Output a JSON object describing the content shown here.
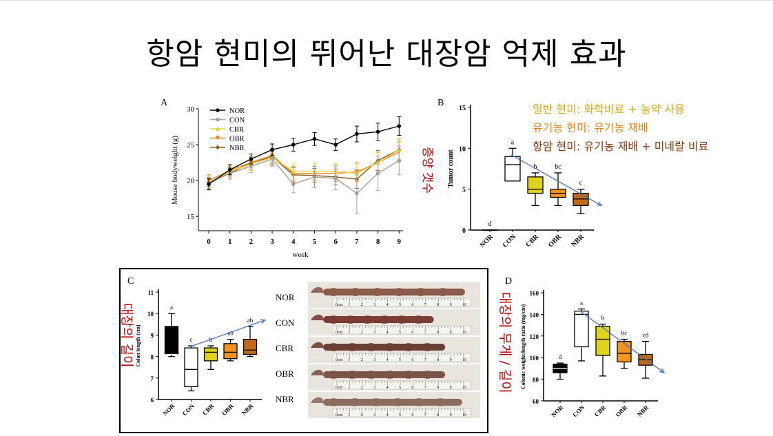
{
  "slide": {
    "title": "항암 현미의 뛰어난 대장암 억제 효과"
  },
  "annotations": {
    "tumor_side": "종양 갯수",
    "colon_length_side": "대장의 길이",
    "colon_weight_side": "대장의 무게 / 길이",
    "legend_regular": "일반 현미: 화학비료 + 농약 사용",
    "legend_organic": "유기농 현미: 유기농 재배",
    "legend_anticancer": "항암 현미: 유기농 재배 + 미네랄 비료",
    "colors": {
      "regular": "#d4a90f",
      "organic": "#e8821a",
      "anticancer": "#8b3a0e",
      "side": "#c00000",
      "trend": "#4472c4"
    }
  },
  "photo": {
    "rows": [
      "NOR",
      "CON",
      "CBR",
      "OBR",
      "NBR"
    ],
    "ruler_numbers": [
      "0cm",
      "1",
      "2",
      "3",
      "4",
      "5",
      "6",
      "7",
      "8",
      "9",
      "10"
    ]
  },
  "chart_data": [
    {
      "panel": "A",
      "type": "line",
      "xlabel": "week",
      "ylabel": "Mouse bodyweight (g)",
      "x": [
        0,
        1,
        2,
        3,
        4,
        5,
        6,
        7,
        8,
        9
      ],
      "ylim": [
        13,
        30
      ],
      "yticks": [
        15,
        20,
        25,
        30
      ],
      "legend": "top-left",
      "series": [
        {
          "name": "NOR",
          "color": "#000000",
          "marker": "circle",
          "values": [
            19.5,
            21.5,
            23.0,
            24.3,
            25.0,
            25.8,
            25.0,
            26.5,
            26.8,
            27.6
          ],
          "err": [
            0.8,
            0.7,
            0.7,
            0.8,
            0.9,
            0.9,
            0.8,
            1.1,
            1.2,
            1.3
          ]
        },
        {
          "name": "CON",
          "color": "#a0a0a0",
          "marker": "circle",
          "values": [
            19.6,
            21.0,
            22.0,
            23.0,
            19.5,
            20.5,
            20.3,
            18.2,
            21.0,
            22.8
          ],
          "err": [
            0.8,
            0.8,
            0.9,
            1.0,
            1.2,
            1.5,
            1.6,
            2.8,
            2.4,
            2.0
          ]
        },
        {
          "name": "CBR",
          "color": "#e8d43a",
          "marker": "triangle-up",
          "values": [
            19.8,
            21.2,
            22.3,
            23.2,
            21.3,
            21.3,
            21.3,
            21.0,
            22.5,
            24.3
          ],
          "err": [
            0.8,
            0.8,
            0.9,
            1.0,
            1.0,
            1.1,
            1.1,
            1.3,
            1.4,
            1.5
          ]
        },
        {
          "name": "OBR",
          "color": "#e8821a",
          "marker": "triangle-down",
          "values": [
            20.0,
            21.4,
            22.5,
            23.5,
            21.0,
            21.0,
            21.0,
            21.2,
            22.5,
            24.0
          ],
          "err": [
            0.8,
            0.8,
            0.9,
            1.0,
            1.0,
            1.0,
            1.1,
            1.3,
            1.4,
            1.4
          ]
        },
        {
          "name": "NBR",
          "color": "#8b5a1a",
          "marker": "diamond",
          "values": [
            19.8,
            21.0,
            22.5,
            23.3,
            20.8,
            20.7,
            20.5,
            20.2,
            22.8,
            24.3
          ],
          "err": [
            0.8,
            0.8,
            0.9,
            1.0,
            1.0,
            1.0,
            1.1,
            1.3,
            1.4,
            1.5
          ]
        }
      ]
    },
    {
      "panel": "B",
      "type": "box",
      "ylabel": "Tumor count",
      "categories": [
        "NOR",
        "CON",
        "CBR",
        "OBR",
        "NBR"
      ],
      "ylim": [
        0,
        15
      ],
      "yticks": [
        0,
        5,
        10,
        15
      ],
      "letters": [
        "d",
        "a",
        "b",
        "bc",
        "c"
      ],
      "fills": [
        "#ffffff",
        "#ffffff",
        "#e0d41a",
        "#f5941c",
        "#c06a1a"
      ],
      "boxes": [
        {
          "min": 0,
          "q1": 0,
          "median": 0,
          "q3": 0,
          "max": 0
        },
        {
          "min": 6,
          "q1": 6,
          "median": 8,
          "q3": 9,
          "max": 10
        },
        {
          "min": 3,
          "q1": 4.5,
          "median": 5,
          "q3": 6.5,
          "max": 7
        },
        {
          "min": 3,
          "q1": 4,
          "median": 4.5,
          "q3": 5,
          "max": 7
        },
        {
          "min": 2,
          "q1": 3,
          "median": 3.8,
          "q3": 4.5,
          "max": 5
        }
      ],
      "trend": [
        9.2,
        3.0
      ]
    },
    {
      "panel": "C",
      "type": "box",
      "ylabel": "Colon length (cm)",
      "categories": [
        "NOR",
        "CON",
        "CBR",
        "OBR",
        "NBR"
      ],
      "ylim": [
        6,
        11
      ],
      "yticks": [
        6,
        7,
        8,
        9,
        10,
        11
      ],
      "letters": [
        "a",
        "c",
        "b",
        "ab",
        "ab"
      ],
      "fills": [
        "#000000",
        "#ffffff",
        "#e0d41a",
        "#f5941c",
        "#c06a1a"
      ],
      "boxes": [
        {
          "min": 8,
          "q1": 8.1,
          "median": 8.1,
          "q3": 9.4,
          "max": 10
        },
        {
          "min": 6.4,
          "q1": 6.6,
          "median": 7.4,
          "q3": 8.4,
          "max": 8.5
        },
        {
          "min": 7.4,
          "q1": 7.8,
          "median": 8.2,
          "q3": 8.4,
          "max": 8.5
        },
        {
          "min": 7.8,
          "q1": 7.9,
          "median": 8.2,
          "q3": 8.6,
          "max": 8.8
        },
        {
          "min": 8,
          "q1": 8.1,
          "median": 8.3,
          "q3": 8.8,
          "max": 9.4
        }
      ],
      "trend": [
        8.45,
        9.7
      ]
    },
    {
      "panel": "D",
      "type": "box",
      "ylabel": "Colonic weight/length ratio (mg/cm)",
      "categories": [
        "NOR",
        "CON",
        "CBR",
        "OBR",
        "NBR"
      ],
      "ylim": [
        60,
        160
      ],
      "yticks": [
        60,
        80,
        100,
        120,
        140,
        160
      ],
      "letters": [
        "d",
        "a",
        "b",
        "bc",
        "cd"
      ],
      "fills": [
        "#000000",
        "#ffffff",
        "#e0d41a",
        "#f5941c",
        "#c06a1a"
      ],
      "boxes": [
        {
          "min": 80,
          "q1": 86,
          "median": 90,
          "q3": 94,
          "max": 95
        },
        {
          "min": 97,
          "q1": 110,
          "median": 140,
          "q3": 143,
          "max": 145
        },
        {
          "min": 83,
          "q1": 102,
          "median": 117,
          "q3": 129,
          "max": 131
        },
        {
          "min": 90,
          "q1": 96,
          "median": 104,
          "q3": 115,
          "max": 117
        },
        {
          "min": 81,
          "q1": 93,
          "median": 98,
          "q3": 103,
          "max": 115
        }
      ],
      "trend": [
        143,
        86
      ]
    }
  ]
}
